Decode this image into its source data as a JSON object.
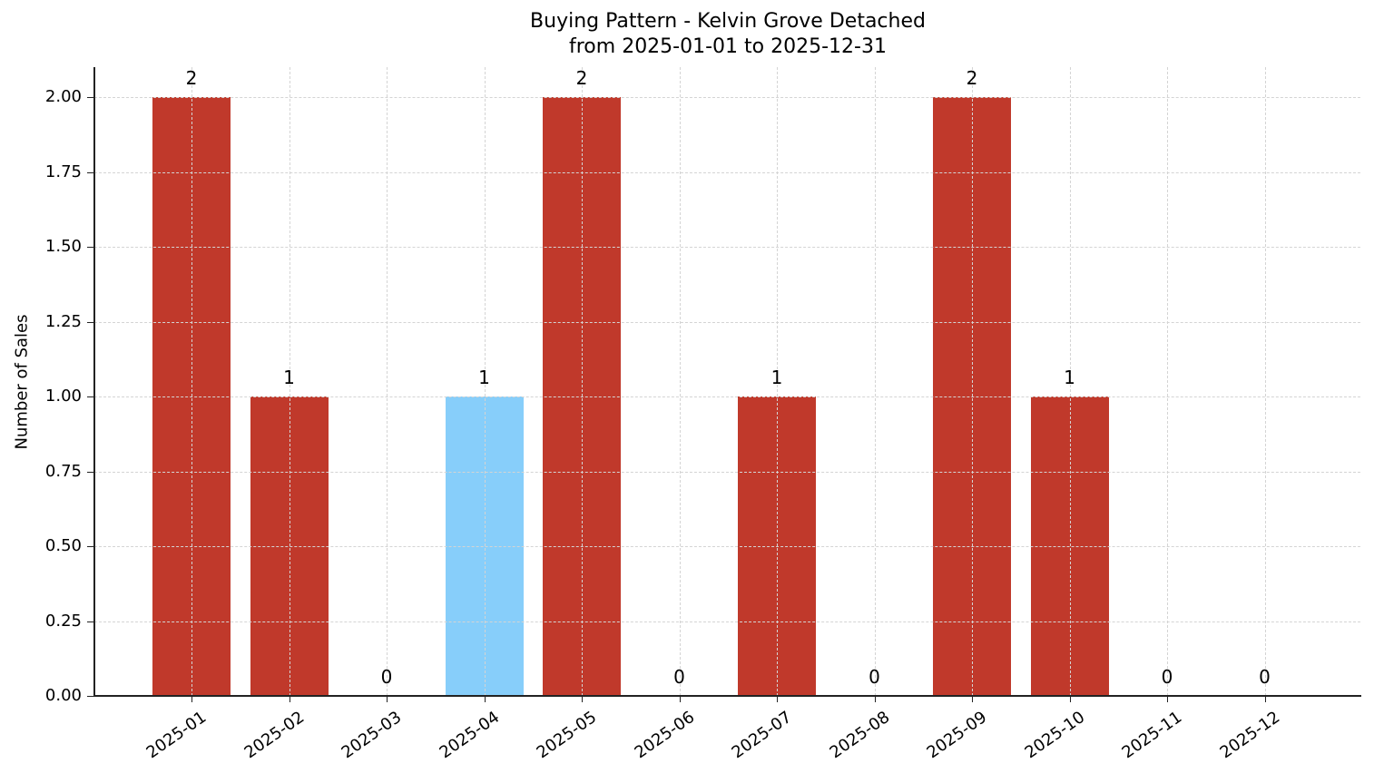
{
  "chart_data": {
    "type": "bar",
    "title": "Buying Pattern - Kelvin Grove Detached",
    "subtitle": "from 2025-01-01 to 2025-12-31",
    "xlabel": "",
    "ylabel": "Number of Sales",
    "categories": [
      "2025-01",
      "2025-02",
      "2025-03",
      "2025-04",
      "2025-05",
      "2025-06",
      "2025-07",
      "2025-08",
      "2025-09",
      "2025-10",
      "2025-11",
      "2025-12"
    ],
    "values": [
      2,
      1,
      0,
      1,
      2,
      0,
      1,
      0,
      2,
      1,
      0,
      0
    ],
    "data_labels": [
      "2",
      "1",
      "0",
      "1",
      "2",
      "0",
      "1",
      "0",
      "2",
      "1",
      "0",
      "0"
    ],
    "bar_colors": [
      "#c0392b",
      "#c0392b",
      "#c0392b",
      "#87cefa",
      "#c0392b",
      "#c0392b",
      "#c0392b",
      "#c0392b",
      "#c0392b",
      "#c0392b",
      "#c0392b",
      "#c0392b"
    ],
    "highlighted_category": "2025-04",
    "yticks": [
      "0.00",
      "0.25",
      "0.50",
      "0.75",
      "1.00",
      "1.25",
      "1.50",
      "1.75",
      "2.00"
    ],
    "ylim": [
      0,
      2.1
    ],
    "grid": true,
    "legend": null
  },
  "colors": {
    "default_bar": "#c0392b",
    "highlight_bar": "#87cefa",
    "grid": "#d4d4d4",
    "axis": "#222222"
  }
}
